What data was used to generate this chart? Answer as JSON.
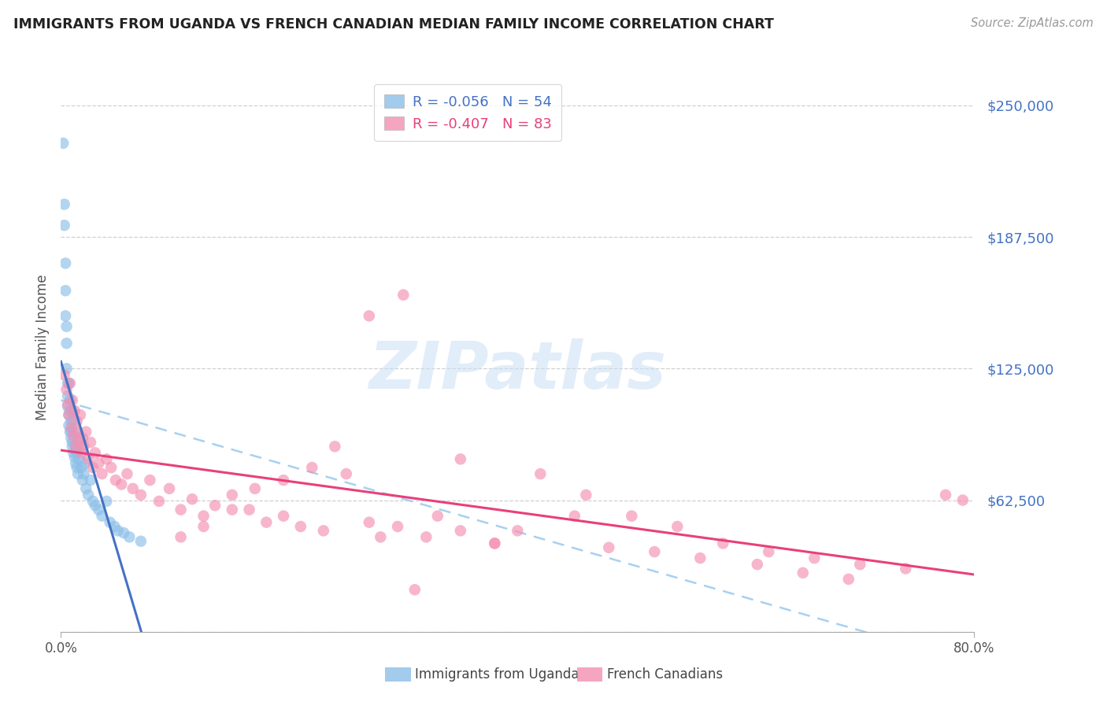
{
  "title": "IMMIGRANTS FROM UGANDA VS FRENCH CANADIAN MEDIAN FAMILY INCOME CORRELATION CHART",
  "source": "Source: ZipAtlas.com",
  "ylabel": "Median Family Income",
  "yticks": [
    0,
    62500,
    125000,
    187500,
    250000
  ],
  "ytick_labels": [
    "",
    "$62,500",
    "$125,000",
    "$187,500",
    "$250,000"
  ],
  "ylim": [
    0,
    270000
  ],
  "xlim": [
    0.0,
    0.8
  ],
  "legend1_r": "-0.056",
  "legend1_n": "54",
  "legend2_r": "-0.407",
  "legend2_n": "83",
  "color_uganda": "#8bbfe8",
  "color_french": "#f48fb1",
  "color_uganda_line": "#4472c4",
  "color_french_line": "#e8407a",
  "color_dashed": "#a8d0f0",
  "right_tick_color": "#4472c4",
  "watermark_text": "ZIPatlas",
  "uganda_x": [
    0.002,
    0.003,
    0.003,
    0.004,
    0.004,
    0.004,
    0.005,
    0.005,
    0.005,
    0.006,
    0.006,
    0.006,
    0.007,
    0.007,
    0.007,
    0.008,
    0.008,
    0.008,
    0.009,
    0.009,
    0.009,
    0.01,
    0.01,
    0.01,
    0.011,
    0.011,
    0.012,
    0.012,
    0.013,
    0.013,
    0.014,
    0.014,
    0.015,
    0.015,
    0.016,
    0.017,
    0.018,
    0.019,
    0.02,
    0.021,
    0.022,
    0.024,
    0.026,
    0.028,
    0.03,
    0.033,
    0.036,
    0.04,
    0.043,
    0.047,
    0.05,
    0.055,
    0.06,
    0.07
  ],
  "uganda_y": [
    232000,
    203000,
    193000,
    175000,
    162000,
    150000,
    145000,
    137000,
    125000,
    118000,
    112000,
    107000,
    103000,
    98000,
    118000,
    95000,
    110000,
    105000,
    100000,
    95000,
    92000,
    90000,
    105000,
    88000,
    85000,
    100000,
    83000,
    95000,
    88000,
    80000,
    85000,
    78000,
    92000,
    75000,
    82000,
    88000,
    78000,
    72000,
    75000,
    80000,
    68000,
    65000,
    72000,
    62000,
    60000,
    58000,
    55000,
    62000,
    52000,
    50000,
    48000,
    47000,
    45000,
    43000
  ],
  "french_x": [
    0.003,
    0.005,
    0.006,
    0.007,
    0.008,
    0.009,
    0.01,
    0.011,
    0.012,
    0.013,
    0.014,
    0.015,
    0.016,
    0.017,
    0.018,
    0.019,
    0.02,
    0.022,
    0.024,
    0.026,
    0.028,
    0.03,
    0.033,
    0.036,
    0.04,
    0.044,
    0.048,
    0.053,
    0.058,
    0.063,
    0.07,
    0.078,
    0.086,
    0.095,
    0.105,
    0.115,
    0.125,
    0.135,
    0.15,
    0.165,
    0.18,
    0.195,
    0.21,
    0.23,
    0.25,
    0.27,
    0.295,
    0.32,
    0.35,
    0.38,
    0.35,
    0.3,
    0.27,
    0.24,
    0.22,
    0.195,
    0.17,
    0.15,
    0.125,
    0.105,
    0.42,
    0.46,
    0.5,
    0.54,
    0.58,
    0.62,
    0.66,
    0.7,
    0.74,
    0.775,
    0.79,
    0.4,
    0.45,
    0.38,
    0.48,
    0.52,
    0.56,
    0.61,
    0.65,
    0.69,
    0.33,
    0.28,
    0.31
  ],
  "french_y": [
    122000,
    115000,
    108000,
    103000,
    118000,
    97000,
    110000,
    93000,
    105000,
    88000,
    100000,
    95000,
    90000,
    103000,
    85000,
    92000,
    88000,
    95000,
    82000,
    90000,
    78000,
    85000,
    80000,
    75000,
    82000,
    78000,
    72000,
    70000,
    75000,
    68000,
    65000,
    72000,
    62000,
    68000,
    58000,
    63000,
    55000,
    60000,
    65000,
    58000,
    52000,
    55000,
    50000,
    48000,
    75000,
    52000,
    50000,
    45000,
    48000,
    42000,
    82000,
    160000,
    150000,
    88000,
    78000,
    72000,
    68000,
    58000,
    50000,
    45000,
    75000,
    65000,
    55000,
    50000,
    42000,
    38000,
    35000,
    32000,
    30000,
    65000,
    62500,
    48000,
    55000,
    42000,
    40000,
    38000,
    35000,
    32000,
    28000,
    25000,
    55000,
    45000,
    20000
  ]
}
